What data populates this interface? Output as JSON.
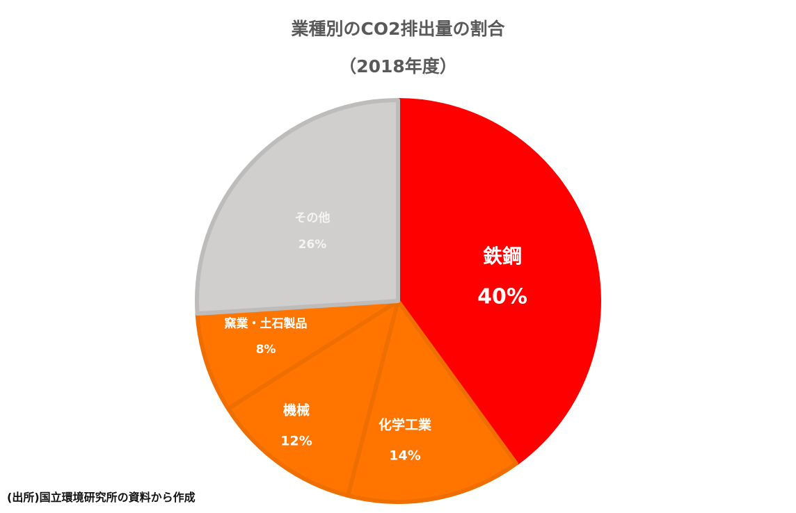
{
  "chart_data": {
    "type": "pie",
    "title": "業種別のCO2排出量の割合",
    "subtitle": "（2018年度）",
    "categories": [
      "鉄鋼",
      "化学工業",
      "機械",
      "窯業・土石製品",
      "その他"
    ],
    "values": [
      40,
      14,
      12,
      8,
      26
    ],
    "labels": [
      "40%",
      "14%",
      "12%",
      "8%",
      "26%"
    ],
    "colors": [
      "#ff0000",
      "#ff7500",
      "#ff7500",
      "#ff7500",
      "#d0cfce"
    ],
    "start": "top",
    "direction": "clockwise",
    "legend": "none"
  },
  "source": "(出所)国立環境研究所の資料から作成"
}
